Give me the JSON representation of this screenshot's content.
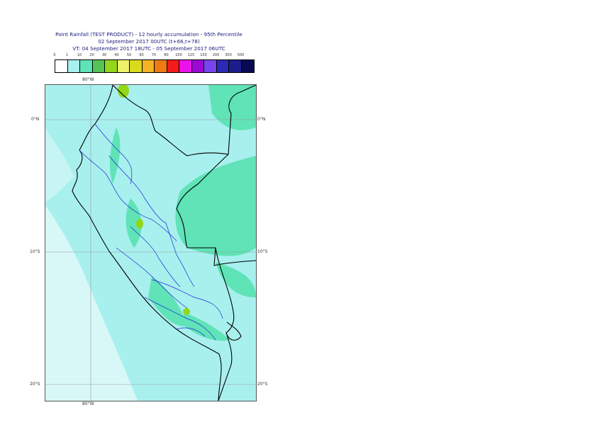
{
  "header": {
    "line1": "Point Rainfall (TEST PRODUCT) - 12 hourly accumulation - 95th Percentile",
    "line2": "02 September 2017 00UTC (t+66,t+78)",
    "line3": "VT: 04 September 2017 18UTC - 05 September 2017 06UTC"
  },
  "legend": {
    "ticks": [
      "0",
      "1",
      "10",
      "20",
      "30",
      "40",
      "50",
      "60",
      "70",
      "80",
      "100",
      "125",
      "150",
      "200",
      "300",
      "500"
    ],
    "colors": [
      "#ffffff",
      "#a8f0ee",
      "#5fe3b7",
      "#55c455",
      "#93d61a",
      "#eef26a",
      "#d9da1e",
      "#f5b223",
      "#f07a12",
      "#f51b1b",
      "#ea12ea",
      "#9a0ad2",
      "#7744ee",
      "#2a2ab4",
      "#1d1d8c",
      "#0a0a52"
    ]
  },
  "map": {
    "lon_label_top": "80°W",
    "lon_label_bottom": "80°W",
    "lat_labels": [
      "0°N",
      "10°S",
      "20°S"
    ],
    "land_color": "#a8f0ee",
    "rain_color": "#5fe3b7",
    "heavy_color": "#93d61a",
    "border_color": "#000000",
    "region_color": "#1f2ad6"
  }
}
